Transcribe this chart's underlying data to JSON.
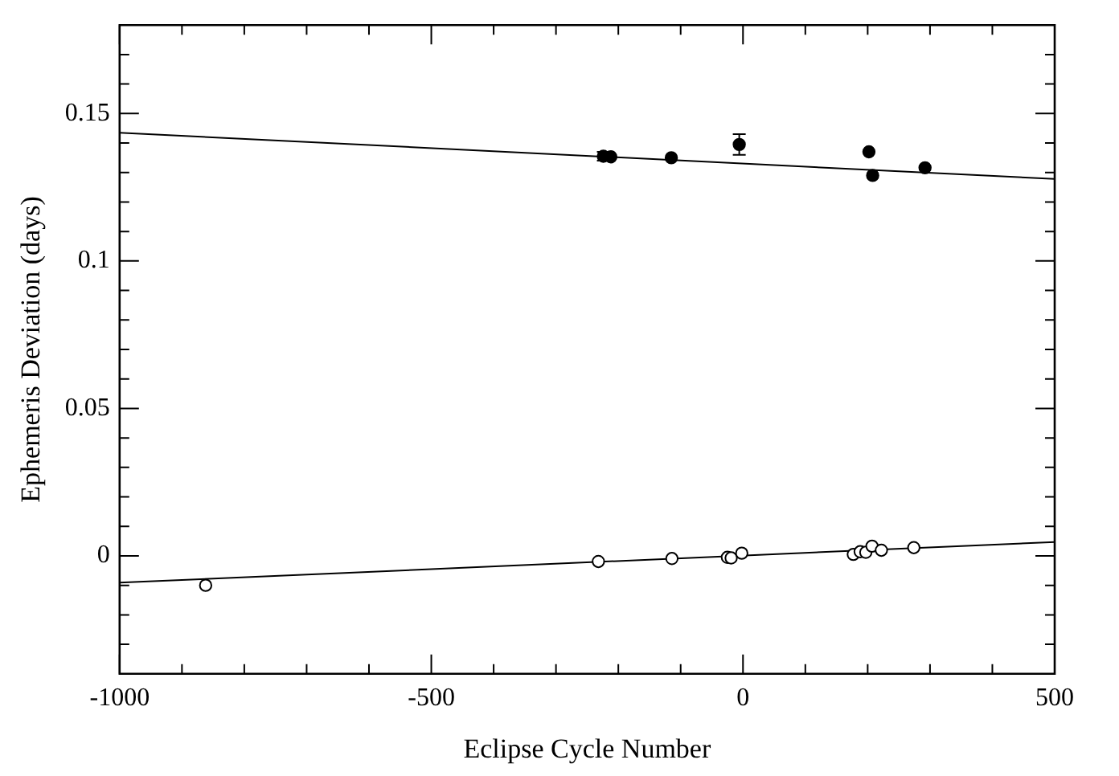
{
  "chart_data": {
    "type": "scatter",
    "xlabel": "Eclipse Cycle Number",
    "ylabel": "Ephemeris Deviation (days)",
    "xlim": [
      -1000,
      500
    ],
    "ylim": [
      -0.04,
      0.18
    ],
    "xticks": [
      -1000,
      {
        "value": -900,
        "label": null
      },
      {
        "value": -800,
        "label": null
      },
      {
        "value": -700,
        "label": null
      },
      {
        "value": -600,
        "label": null
      },
      -500,
      {
        "value": -400,
        "label": null
      },
      {
        "value": -300,
        "label": null
      },
      {
        "value": -200,
        "label": null
      },
      {
        "value": -100,
        "label": null
      },
      0,
      {
        "value": 100,
        "label": null
      },
      {
        "value": 200,
        "label": null
      },
      {
        "value": 300,
        "label": null
      },
      {
        "value": 400,
        "label": null
      },
      500
    ],
    "yticks": [
      {
        "value": -0.03,
        "label": null
      },
      {
        "value": -0.02,
        "label": null
      },
      {
        "value": -0.01,
        "label": null
      },
      0,
      {
        "value": 0.01,
        "label": null
      },
      {
        "value": 0.02,
        "label": null
      },
      {
        "value": 0.03,
        "label": null
      },
      {
        "value": 0.04,
        "label": null
      },
      0.05,
      {
        "value": 0.06,
        "label": null
      },
      {
        "value": 0.07,
        "label": null
      },
      {
        "value": 0.08,
        "label": null
      },
      {
        "value": 0.09,
        "label": null
      },
      0.1,
      {
        "value": 0.11,
        "label": null
      },
      {
        "value": 0.12,
        "label": null
      },
      {
        "value": 0.13,
        "label": null
      },
      {
        "value": 0.14,
        "label": null
      },
      0.15,
      {
        "value": 0.16,
        "label": null
      },
      {
        "value": 0.17,
        "label": null
      }
    ],
    "grid": false,
    "legend": false,
    "marker": "circle",
    "series": [
      {
        "color": "#000000",
        "x": [
          -224,
          -212,
          -115,
          -6,
          202,
          208,
          292
        ],
        "values": [
          0.1355,
          0.1353,
          0.135,
          0.1395,
          0.137,
          0.129,
          0.1316
        ],
        "errors": [
          0.0015,
          null,
          null,
          0.0035,
          null,
          null,
          null
        ]
      },
      {
        "color": "#ffffff",
        "x": [
          -862,
          -232,
          -114,
          -25,
          -19,
          -2,
          177,
          188,
          197,
          207,
          222,
          274
        ],
        "values": [
          -0.01,
          -0.0019,
          -0.0009,
          -0.0005,
          -0.0007,
          0.0009,
          0.0005,
          0.0014,
          0.0012,
          0.0033,
          0.0019,
          0.0028
        ]
      },
      {
        "type": "line",
        "color": "#000000",
        "marker": "none",
        "x": [
          -1000,
          500
        ],
        "values": [
          0.1435,
          0.1278
        ]
      },
      {
        "type": "line",
        "color": "#000000",
        "marker": "none",
        "x": [
          -1000,
          500
        ],
        "values": [
          -0.0091,
          0.0047
        ]
      }
    ]
  }
}
